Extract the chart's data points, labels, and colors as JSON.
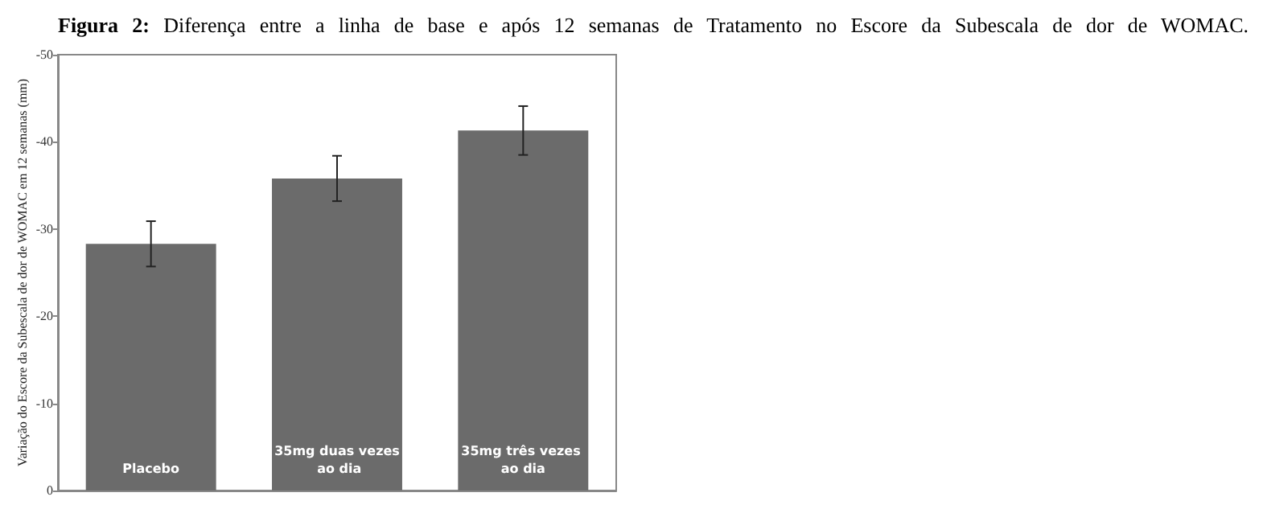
{
  "chart_data": {
    "type": "bar",
    "title": "Figura 2: Diferença entre a linha de base e após 12 semanas de Tratamento no Escore da Subescala de dor de WOMAC.",
    "ylabel": "Variação do Escore da Subescala de dor de WOMAC em 12 semanas (mm)",
    "categories": [
      "Placebo",
      "35mg duas vezes ao dia",
      "35mg três vezes ao dia"
    ],
    "values": [
      -28.3,
      -35.8,
      -41.3
    ],
    "errors": [
      2.6,
      2.6,
      2.8
    ],
    "color": "#6b6b6b",
    "ylim": [
      0,
      -50
    ],
    "yticks": [
      0,
      -10,
      -20,
      -30,
      -40,
      -50
    ],
    "grid": false
  }
}
